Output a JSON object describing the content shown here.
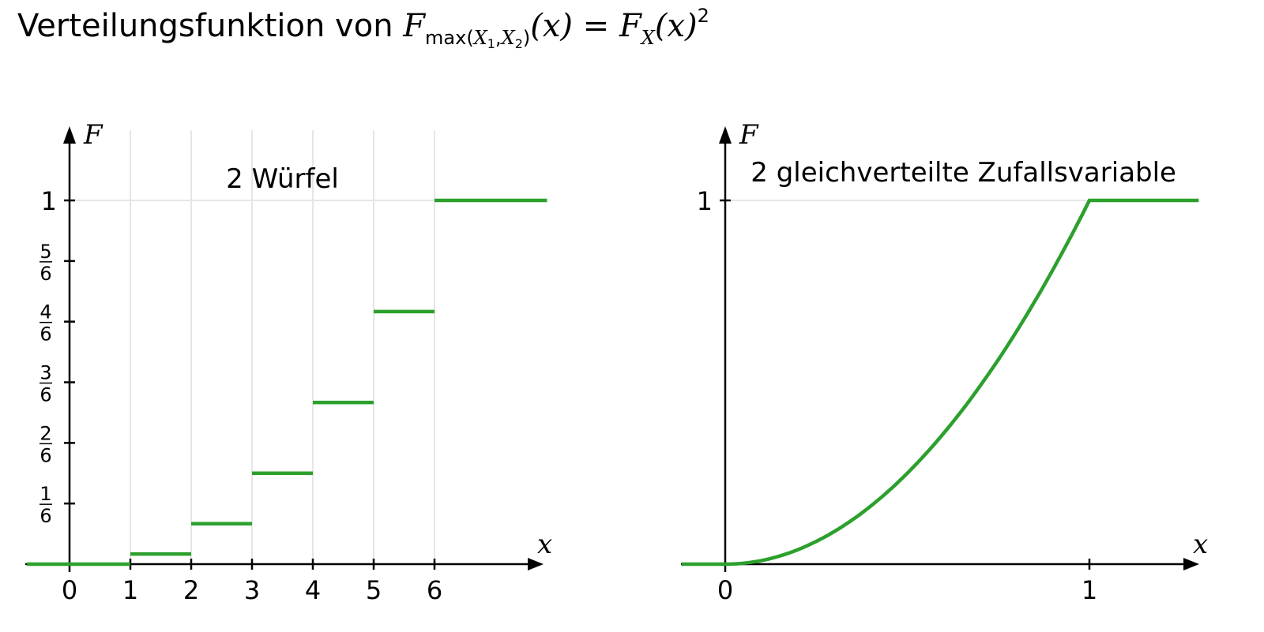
{
  "title": {
    "prefix": "Verteilungsfunktion von ",
    "F": "F",
    "sub_max": "max(",
    "sub_X1": "X",
    "sub_1": "1",
    "sub_comma": ",",
    "sub_X2": "X",
    "sub_2": "2",
    "sub_close": ")",
    "arg": "(x)",
    "equals": " = ",
    "rhs_F": "F",
    "rhs_sub": "X",
    "rhs_arg": "(x)",
    "rhs_sup": "2"
  },
  "colors": {
    "series": "#2ca02c",
    "grid": "#e6e6e6",
    "axis": "#000000"
  },
  "chart_data": [
    {
      "type": "line",
      "step": true,
      "annotation": "2 Würfel",
      "xlabel": "x",
      "ylabel": "F",
      "xlim": [
        -0.7,
        7.8
      ],
      "ylim": [
        0,
        1.2
      ],
      "x_ticks": [
        "0",
        "1",
        "2",
        "3",
        "4",
        "5",
        "6"
      ],
      "y_ticks": [
        {
          "value": 0.1667,
          "num": "1",
          "den": "6"
        },
        {
          "value": 0.3333,
          "num": "2",
          "den": "6"
        },
        {
          "value": 0.5,
          "num": "3",
          "den": "6"
        },
        {
          "value": 0.6667,
          "num": "4",
          "den": "6"
        },
        {
          "value": 0.8333,
          "num": "5",
          "den": "6"
        },
        {
          "value": 1,
          "label": "1"
        }
      ],
      "grid": "vertical at x = 1..6, horizontal at F = 1",
      "segments": [
        {
          "x0": -0.7,
          "x1": 1,
          "y": 0
        },
        {
          "x0": 1,
          "x1": 2,
          "y": 0.0278
        },
        {
          "x0": 2,
          "x1": 3,
          "y": 0.1111
        },
        {
          "x0": 3,
          "x1": 4,
          "y": 0.25
        },
        {
          "x0": 4,
          "x1": 5,
          "y": 0.4444
        },
        {
          "x0": 5,
          "x1": 6,
          "y": 0.6944
        },
        {
          "x0": 6,
          "x1": 7.85,
          "y": 1
        }
      ]
    },
    {
      "type": "line",
      "annotation": "2 gleichverteilte Zufallsvariable",
      "xlabel": "x",
      "ylabel": "F",
      "xlim": [
        -0.12,
        1.3
      ],
      "ylim": [
        0,
        1.2
      ],
      "x_ticks": [
        "0",
        "1"
      ],
      "y_ticks": [
        {
          "value": 1,
          "label": "1"
        }
      ],
      "grid": "horizontal at F = 1",
      "function": "F(x) = x^2 for 0 <= x <= 1, 0 for x < 0, 1 for x > 1",
      "x": [
        -0.12,
        0,
        0.1,
        0.2,
        0.3,
        0.4,
        0.5,
        0.6,
        0.7,
        0.8,
        0.9,
        1,
        1.3
      ],
      "y": [
        0,
        0,
        0.01,
        0.04,
        0.09,
        0.16,
        0.25,
        0.36,
        0.49,
        0.64,
        0.81,
        1,
        1
      ]
    }
  ]
}
